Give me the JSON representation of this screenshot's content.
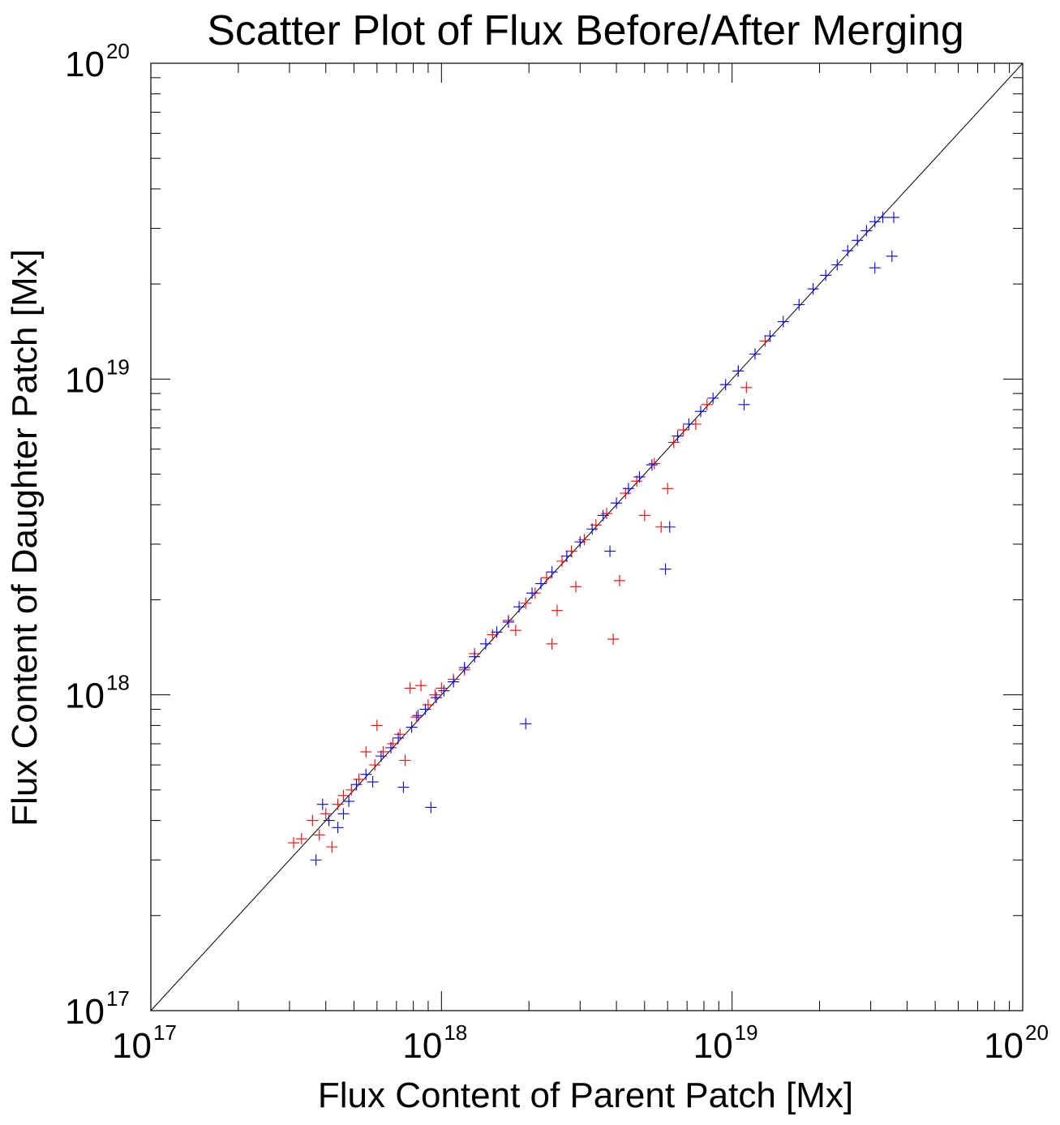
{
  "chart_data": {
    "type": "scatter",
    "title": "Scatter Plot of Flux Before/After Merging",
    "xlabel": "Flux Content of Parent Patch [Mx]",
    "ylabel": "Flux Content of Daughter Patch [Mx]",
    "xscale": "log",
    "yscale": "log",
    "xlim": [
      1e+17,
      1e+20
    ],
    "ylim": [
      1e+17,
      1e+20
    ],
    "x_ticks": [
      {
        "base": "10",
        "exp": "17"
      },
      {
        "base": "10",
        "exp": "18"
      },
      {
        "base": "10",
        "exp": "19"
      },
      {
        "base": "10",
        "exp": "20"
      }
    ],
    "y_ticks": [
      {
        "base": "10",
        "exp": "17"
      },
      {
        "base": "10",
        "exp": "18"
      },
      {
        "base": "10",
        "exp": "19"
      },
      {
        "base": "10",
        "exp": "20"
      }
    ],
    "reference_line": {
      "type": "y=x",
      "color": "#000000"
    },
    "marker": "+",
    "grid": false,
    "series": [
      {
        "color": "#ff0000",
        "points": [
          [
            3.1e+17,
            3.4e+17
          ],
          [
            3.3e+17,
            3.5e+17
          ],
          [
            3.6e+17,
            4e+17
          ],
          [
            3.8e+17,
            3.6e+17
          ],
          [
            4e+17,
            4.2e+17
          ],
          [
            4.2e+17,
            3.3e+17
          ],
          [
            4.4e+17,
            4.5e+17
          ],
          [
            4.6e+17,
            4.8e+17
          ],
          [
            4.9e+17,
            5e+17
          ],
          [
            5.2e+17,
            5.4e+17
          ],
          [
            5.5e+17,
            6.6e+17
          ],
          [
            5.9e+17,
            6e+17
          ],
          [
            6e+17,
            8e+17
          ],
          [
            6.3e+17,
            6.6e+17
          ],
          [
            6.8e+17,
            7e+17
          ],
          [
            7.2e+17,
            7.5e+17
          ],
          [
            7.5e+17,
            6.2e+17
          ],
          [
            7.8e+17,
            1.05e+18
          ],
          [
            8.2e+17,
            8.5e+17
          ],
          [
            8.5e+17,
            1.07e+18
          ],
          [
            9e+17,
            9.3e+17
          ],
          [
            9.5e+17,
            1e+18
          ],
          [
            1e+18,
            1.05e+18
          ],
          [
            1.1e+18,
            1.12e+18
          ],
          [
            1.2e+18,
            1.2e+18
          ],
          [
            1.3e+18,
            1.35e+18
          ],
          [
            1.5e+18,
            1.55e+18
          ],
          [
            1.7e+18,
            1.72e+18
          ],
          [
            1.8e+18,
            1.6e+18
          ],
          [
            1.95e+18,
            1.95e+18
          ],
          [
            2.1e+18,
            2.1e+18
          ],
          [
            2.3e+18,
            2.35e+18
          ],
          [
            2.4e+18,
            1.45e+18
          ],
          [
            2.5e+18,
            1.85e+18
          ],
          [
            2.6e+18,
            2.65e+18
          ],
          [
            2.8e+18,
            2.85e+18
          ],
          [
            2.9e+18,
            2.2e+18
          ],
          [
            3.1e+18,
            3.1e+18
          ],
          [
            3.4e+18,
            3.45e+18
          ],
          [
            3.7e+18,
            3.75e+18
          ],
          [
            3.9e+18,
            1.5e+18
          ],
          [
            4.1e+18,
            2.3e+18
          ],
          [
            4.3e+18,
            4.35e+18
          ],
          [
            4.7e+18,
            4.75e+18
          ],
          [
            5e+18,
            3.7e+18
          ],
          [
            5.4e+18,
            5.4e+18
          ],
          [
            5.7e+18,
            3.4e+18
          ],
          [
            6e+18,
            4.5e+18
          ],
          [
            6.3e+18,
            6.3e+18
          ],
          [
            6.8e+18,
            6.9e+18
          ],
          [
            7.5e+18,
            7.2e+18
          ],
          [
            8.2e+18,
            8.3e+18
          ],
          [
            1.05e+19,
            1.06e+19
          ],
          [
            1.12e+19,
            9.4e+18
          ],
          [
            1.3e+19,
            1.32e+19
          ]
        ]
      },
      {
        "color": "#0000ff",
        "points": [
          [
            3.7e+17,
            3e+17
          ],
          [
            3.9e+17,
            4.5e+17
          ],
          [
            4.1e+17,
            4e+17
          ],
          [
            4.4e+17,
            3.8e+17
          ],
          [
            4.6e+17,
            4.2e+17
          ],
          [
            4.8e+17,
            4.6e+17
          ],
          [
            5.1e+17,
            5.2e+17
          ],
          [
            5.5e+17,
            5.6e+17
          ],
          [
            5.8e+17,
            5.3e+17
          ],
          [
            6.2e+17,
            6.4e+17
          ],
          [
            6.7e+17,
            6.8e+17
          ],
          [
            7.1e+17,
            7.3e+17
          ],
          [
            7.4e+17,
            5.1e+17
          ],
          [
            7.9e+17,
            7.9e+17
          ],
          [
            8.3e+17,
            8.6e+17
          ],
          [
            8.8e+17,
            9e+17
          ],
          [
            9.2e+17,
            4.4e+17
          ],
          [
            9.6e+17,
            9.8e+17
          ],
          [
            1.02e+18,
            1.03e+18
          ],
          [
            1.1e+18,
            1.1e+18
          ],
          [
            1.2e+18,
            1.22e+18
          ],
          [
            1.3e+18,
            1.32e+18
          ],
          [
            1.42e+18,
            1.45e+18
          ],
          [
            1.55e+18,
            1.58e+18
          ],
          [
            1.7e+18,
            1.7e+18
          ],
          [
            1.85e+18,
            1.9e+18
          ],
          [
            1.95e+18,
            8.1e+17
          ],
          [
            2.05e+18,
            2.1e+18
          ],
          [
            2.2e+18,
            2.25e+18
          ],
          [
            2.4e+18,
            2.45e+18
          ],
          [
            2.7e+18,
            2.75e+18
          ],
          [
            3e+18,
            3.05e+18
          ],
          [
            3.3e+18,
            3.35e+18
          ],
          [
            3.6e+18,
            3.7e+18
          ],
          [
            3.8e+18,
            2.85e+18
          ],
          [
            4e+18,
            4.05e+18
          ],
          [
            4.4e+18,
            4.5e+18
          ],
          [
            4.8e+18,
            4.9e+18
          ],
          [
            5.3e+18,
            5.35e+18
          ],
          [
            5.9e+18,
            2.5e+18
          ],
          [
            6.1e+18,
            3.4e+18
          ],
          [
            6.5e+18,
            6.6e+18
          ],
          [
            7.1e+18,
            7.2e+18
          ],
          [
            7.8e+18,
            7.9e+18
          ],
          [
            8.6e+18,
            8.7e+18
          ],
          [
            9.5e+18,
            9.6e+18
          ],
          [
            1.05e+19,
            1.06e+19
          ],
          [
            1.1e+19,
            8.3e+18
          ],
          [
            1.2e+19,
            1.2e+19
          ],
          [
            1.35e+19,
            1.37e+19
          ],
          [
            1.5e+19,
            1.52e+19
          ],
          [
            1.7e+19,
            1.72e+19
          ],
          [
            1.9e+19,
            1.93e+19
          ],
          [
            2.1e+19,
            2.13e+19
          ],
          [
            2.3e+19,
            2.3e+19
          ],
          [
            2.5e+19,
            2.55e+19
          ],
          [
            2.7e+19,
            2.75e+19
          ],
          [
            2.9e+19,
            2.95e+19
          ],
          [
            3.1e+19,
            3.15e+19
          ],
          [
            3.3e+19,
            3.25e+19
          ],
          [
            3.1e+19,
            2.25e+19
          ],
          [
            3.55e+19,
            2.45e+19
          ],
          [
            3.6e+19,
            3.25e+19
          ]
        ]
      }
    ]
  }
}
